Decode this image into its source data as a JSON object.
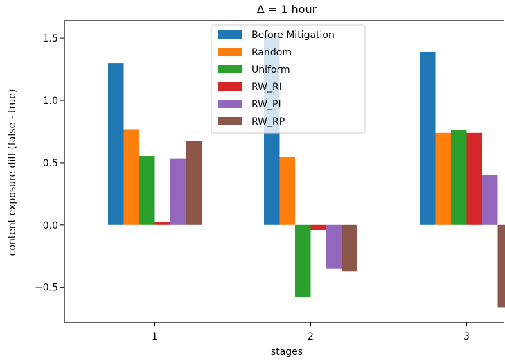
{
  "chart_data": {
    "type": "bar",
    "title": "Δ = 1 hour",
    "xlabel": "stages",
    "ylabel": "content exposure diff (false - true)",
    "categories": [
      "1",
      "2",
      "3"
    ],
    "series": [
      {
        "name": "Before Mitigation",
        "color": "#1f77b4",
        "values": [
          1.3,
          1.53,
          1.39
        ]
      },
      {
        "name": "Random",
        "color": "#ff7f0e",
        "values": [
          0.77,
          0.55,
          0.74
        ]
      },
      {
        "name": "Uniform",
        "color": "#2ca02c",
        "values": [
          0.555,
          -0.58,
          0.765
        ]
      },
      {
        "name": "RW_RI",
        "color": "#d62728",
        "values": [
          0.025,
          -0.04,
          0.74
        ]
      },
      {
        "name": "RW_PI",
        "color": "#9467bd",
        "values": [
          0.535,
          -0.35,
          0.405
        ]
      },
      {
        "name": "RW_RP",
        "color": "#8c564b",
        "values": [
          0.675,
          -0.37,
          -0.66
        ]
      }
    ],
    "ylim": [
      -0.78,
      1.64
    ],
    "yticks": [
      "−0.5",
      "0.0",
      "0.5",
      "1.0",
      "1.5"
    ],
    "ytick_values": [
      -0.5,
      0.0,
      0.5,
      1.0,
      1.5
    ],
    "grid": false,
    "legend_position": "top-center"
  }
}
